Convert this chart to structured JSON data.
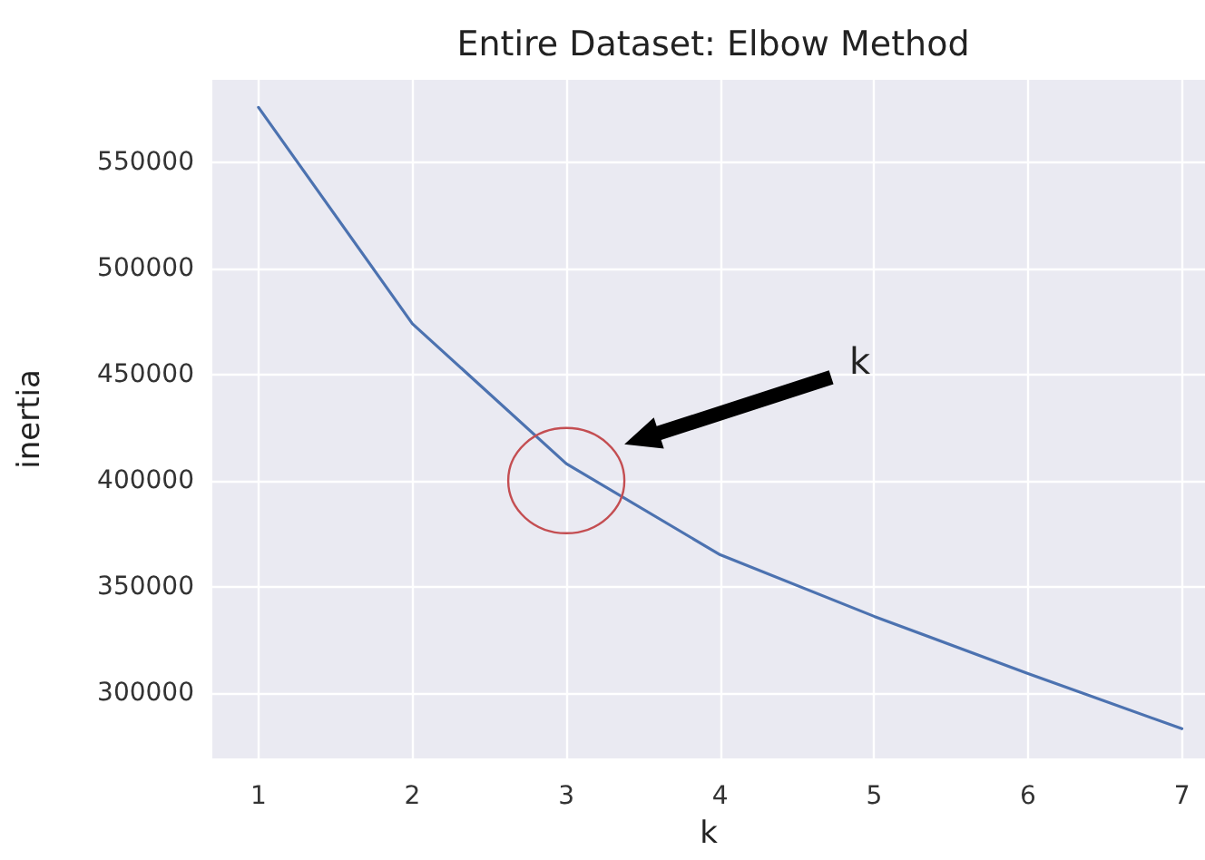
{
  "chart_data": {
    "type": "line",
    "title": "Entire Dataset: Elbow Method",
    "xlabel": "k",
    "ylabel": "inertia",
    "x": [
      1,
      2,
      3,
      4,
      5,
      6,
      7
    ],
    "series": [
      {
        "color": "#4c72b0",
        "values": [
          576000,
          474000,
          408000,
          365000,
          336000,
          309000,
          283000
        ]
      }
    ],
    "xlim": [
      0.7,
      7.15
    ],
    "xticks": [
      1,
      2,
      3,
      4,
      5,
      6,
      7
    ],
    "ylim": [
      269000,
      589000
    ],
    "yticks": [
      300000,
      350000,
      400000,
      450000,
      500000,
      550000
    ],
    "annotations": [
      "k"
    ],
    "grid": true,
    "marker": "none",
    "line_style": "solid"
  }
}
